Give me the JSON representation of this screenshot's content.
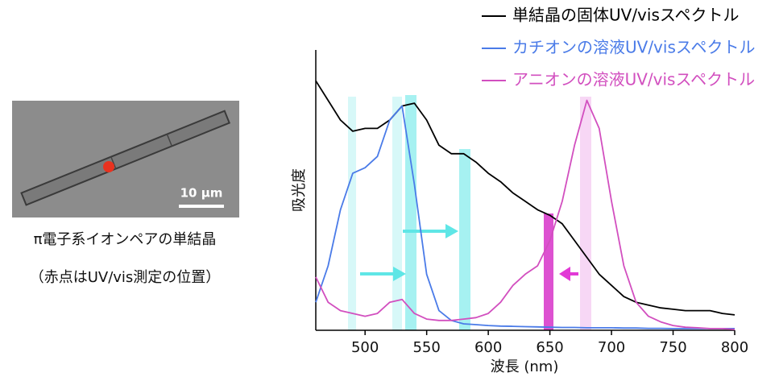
{
  "figure": {
    "scale_label": "10 µm",
    "caption": [
      "π電子系イオンペアの単結晶",
      "（赤点はUV/vis測定の位置）"
    ]
  },
  "chart_data": {
    "type": "line",
    "xlabel": "波長 (nm)",
    "ylabel": "吸光度",
    "x": [
      460,
      470,
      480,
      490,
      500,
      510,
      520,
      530,
      540,
      550,
      560,
      570,
      580,
      590,
      600,
      610,
      620,
      630,
      640,
      650,
      660,
      670,
      680,
      690,
      700,
      710,
      720,
      730,
      740,
      750,
      760,
      770,
      780,
      790,
      800
    ],
    "xlim": [
      460,
      800
    ],
    "xticks": [
      500,
      550,
      600,
      650,
      700,
      750,
      800
    ],
    "ylim": [
      0,
      100
    ],
    "legend": "top-right",
    "series": [
      {
        "name": "単結晶の固体UV/visスペクトル",
        "color": "#000000",
        "values": [
          89,
          82,
          75,
          71,
          72,
          72,
          75,
          80,
          81,
          75,
          66,
          63,
          63,
          60,
          56,
          53,
          49,
          46,
          43,
          41,
          38,
          32,
          26,
          20,
          16,
          12,
          10,
          9,
          8,
          7.5,
          7,
          7,
          7,
          6,
          5.5
        ]
      },
      {
        "name": "カチオンの溶液UV/visスペクトル",
        "color": "#4a7be8",
        "values": [
          10,
          23,
          43,
          56,
          58,
          62,
          75,
          80,
          52,
          20,
          7,
          3.5,
          2.3,
          2,
          1.7,
          1.5,
          1.4,
          1.3,
          1.2,
          1.1,
          1,
          1,
          0.9,
          0.9,
          0.9,
          0.8,
          0.8,
          0.7,
          0.7,
          0.6,
          0.6,
          0.6,
          0.6,
          0.6,
          0.6
        ]
      },
      {
        "name": "アニオンの溶液UV/visスペクトル",
        "color": "#d24fbf",
        "values": [
          19,
          10,
          7,
          6,
          5,
          6,
          10,
          11,
          6,
          4,
          3.5,
          3.5,
          4,
          4.5,
          6,
          10,
          16,
          20,
          23,
          32,
          46,
          66,
          82,
          72,
          46,
          23,
          10,
          5,
          3,
          1.7,
          1.1,
          0.9,
          0.6,
          0.6,
          0.3
        ]
      }
    ]
  }
}
